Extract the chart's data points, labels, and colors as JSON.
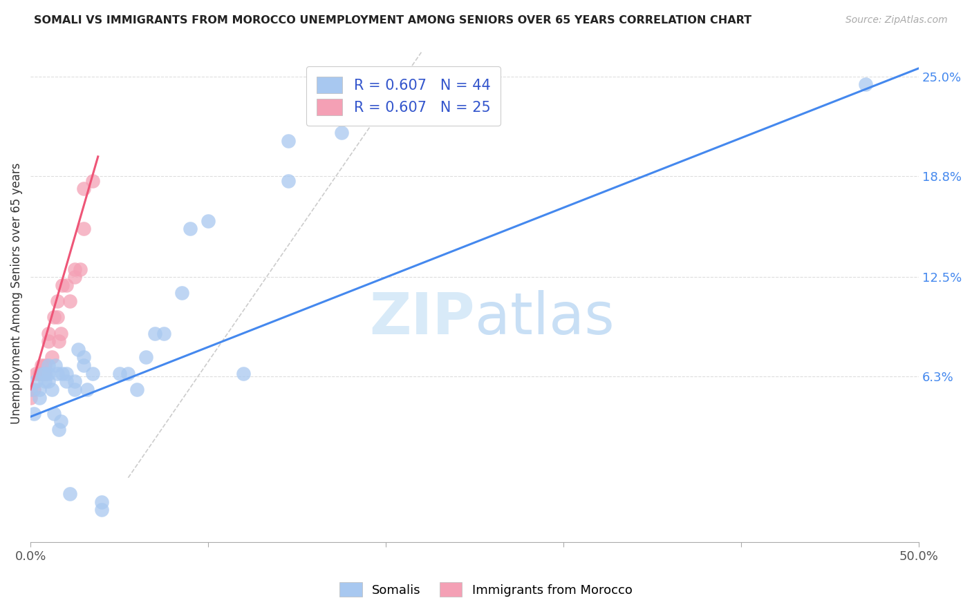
{
  "title": "SOMALI VS IMMIGRANTS FROM MOROCCO UNEMPLOYMENT AMONG SENIORS OVER 65 YEARS CORRELATION CHART",
  "source": "Source: ZipAtlas.com",
  "ylabel": "Unemployment Among Seniors over 65 years",
  "xlim": [
    0,
    0.5
  ],
  "ylim": [
    -0.04,
    0.27
  ],
  "yticks_right": [
    0.063,
    0.125,
    0.188,
    0.25
  ],
  "ytick_labels_right": [
    "6.3%",
    "12.5%",
    "18.8%",
    "25.0%"
  ],
  "blue_color": "#a8c8f0",
  "pink_color": "#f4a0b5",
  "trend_blue": "#4488ee",
  "trend_pink": "#ee5577",
  "trend_gray_color": "#cccccc",
  "watermark_color": "#d8eaf8",
  "somali_x": [
    0.0,
    0.002,
    0.003,
    0.005,
    0.005,
    0.007,
    0.008,
    0.008,
    0.01,
    0.01,
    0.01,
    0.012,
    0.013,
    0.014,
    0.015,
    0.016,
    0.017,
    0.018,
    0.02,
    0.02,
    0.022,
    0.025,
    0.025,
    0.027,
    0.03,
    0.03,
    0.032,
    0.035,
    0.04,
    0.04,
    0.05,
    0.055,
    0.06,
    0.065,
    0.07,
    0.075,
    0.085,
    0.09,
    0.1,
    0.12,
    0.145,
    0.145,
    0.175,
    0.47
  ],
  "somali_y": [
    0.055,
    0.04,
    0.06,
    0.05,
    0.055,
    0.065,
    0.06,
    0.065,
    0.06,
    0.065,
    0.07,
    0.055,
    0.04,
    0.07,
    0.065,
    0.03,
    0.035,
    0.065,
    0.065,
    0.06,
    -0.01,
    0.055,
    0.06,
    0.08,
    0.07,
    0.075,
    0.055,
    0.065,
    -0.015,
    -0.02,
    0.065,
    0.065,
    0.055,
    0.075,
    0.09,
    0.09,
    0.115,
    0.155,
    0.16,
    0.065,
    0.185,
    0.21,
    0.215,
    0.245
  ],
  "morocco_x": [
    0.0,
    0.002,
    0.003,
    0.005,
    0.006,
    0.007,
    0.008,
    0.008,
    0.01,
    0.01,
    0.012,
    0.013,
    0.015,
    0.015,
    0.016,
    0.017,
    0.018,
    0.02,
    0.022,
    0.025,
    0.025,
    0.028,
    0.03,
    0.03,
    0.035
  ],
  "morocco_y": [
    0.05,
    0.055,
    0.065,
    0.065,
    0.07,
    0.065,
    0.065,
    0.07,
    0.09,
    0.085,
    0.075,
    0.1,
    0.1,
    0.11,
    0.085,
    0.09,
    0.12,
    0.12,
    0.11,
    0.125,
    0.13,
    0.13,
    0.155,
    0.18,
    0.185
  ],
  "blue_trend_x0": 0.0,
  "blue_trend_y0": 0.038,
  "blue_trend_x1": 0.5,
  "blue_trend_y1": 0.255,
  "pink_trend_x0": 0.0,
  "pink_trend_y0": 0.055,
  "pink_trend_x1": 0.038,
  "pink_trend_y1": 0.2,
  "gray_line_x0": 0.055,
  "gray_line_y0": 0.0,
  "gray_line_x1": 0.22,
  "gray_line_y1": 0.265,
  "figsize": [
    14.06,
    8.92
  ],
  "dpi": 100
}
